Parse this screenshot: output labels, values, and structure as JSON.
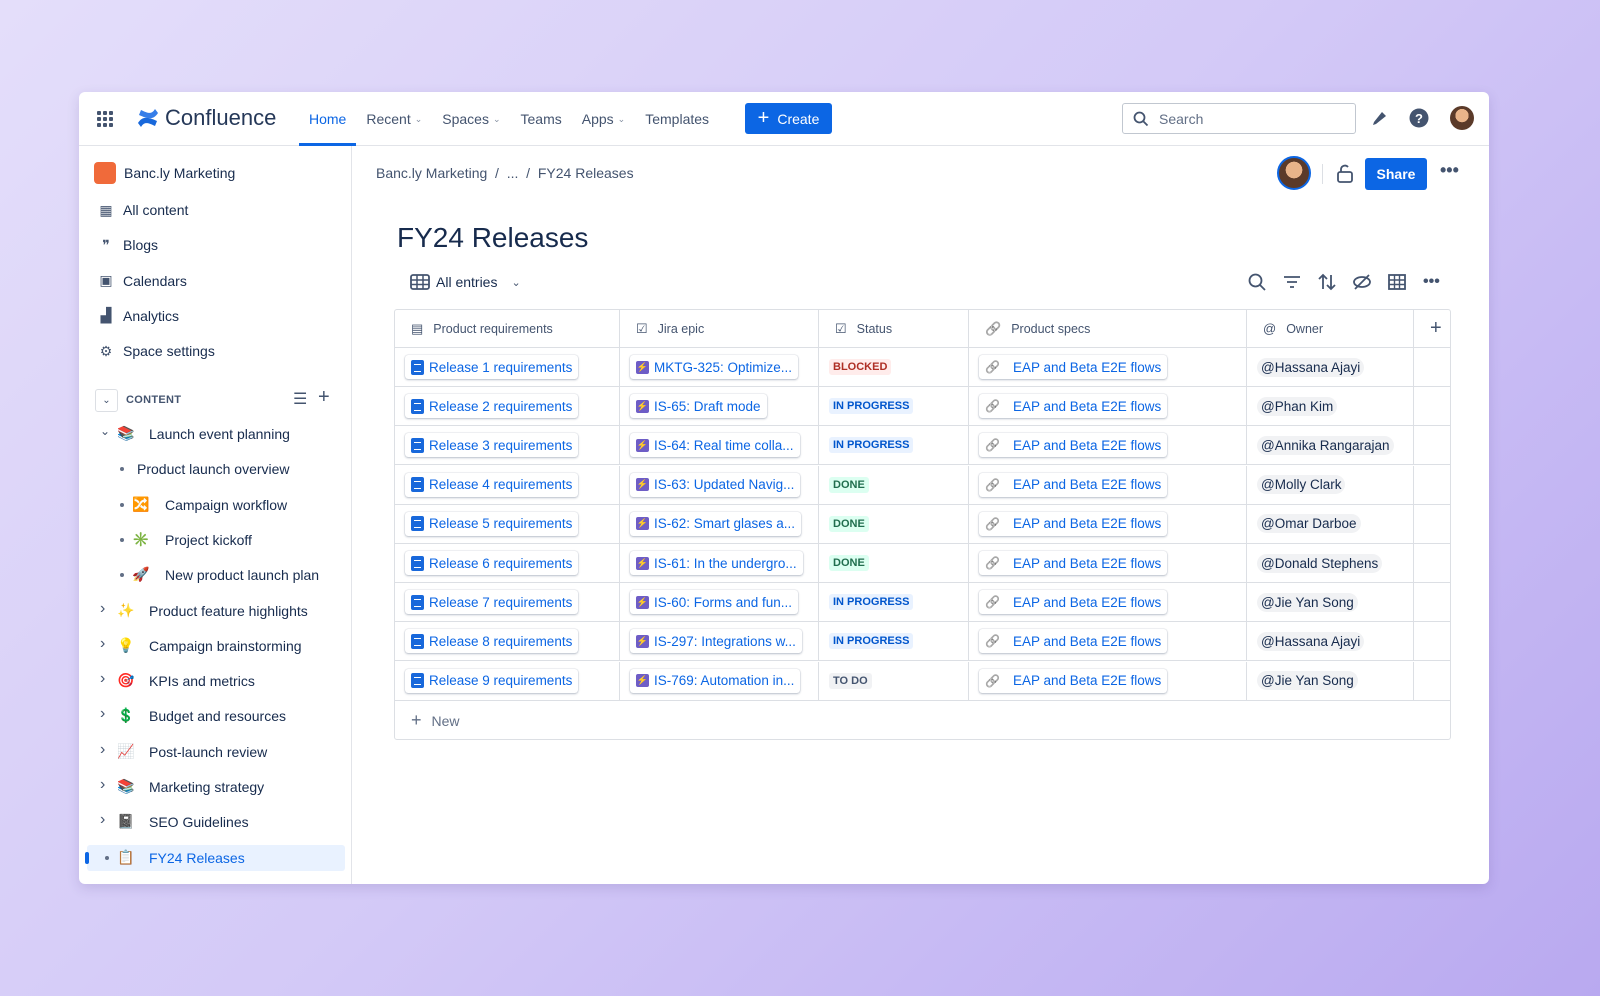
{
  "topbar": {
    "app_name": "Confluence",
    "nav": [
      {
        "label": "Home",
        "active": true,
        "dropdown": false
      },
      {
        "label": "Recent",
        "dropdown": true
      },
      {
        "label": "Spaces",
        "dropdown": true
      },
      {
        "label": "Teams",
        "dropdown": false
      },
      {
        "label": "Apps",
        "dropdown": true
      },
      {
        "label": "Templates",
        "dropdown": false
      }
    ],
    "create_label": "Create",
    "search_placeholder": "Search",
    "icons": [
      "app-switcher-icon",
      "notifications-icon",
      "help-icon",
      "avatar"
    ]
  },
  "sidebar": {
    "space_name": "Banc.ly Marketing",
    "items": [
      {
        "label": "All content",
        "icon": "grid-icon"
      },
      {
        "label": "Blogs",
        "icon": "quote-icon"
      },
      {
        "label": "Calendars",
        "icon": "calendar-icon"
      },
      {
        "label": "Analytics",
        "icon": "chart-icon"
      },
      {
        "label": "Space settings",
        "icon": "gear-icon"
      }
    ],
    "content_label": "CONTENT",
    "tree": [
      {
        "label": "Launch event planning",
        "emoji": "📚",
        "level": 0,
        "state": "expanded"
      },
      {
        "label": "Product launch overview",
        "emoji": "",
        "level": 1,
        "state": "leaf"
      },
      {
        "label": "Campaign workflow",
        "emoji": "🔀",
        "level": 1,
        "state": "leaf"
      },
      {
        "label": "Project kickoff",
        "emoji": "✳️",
        "level": 1,
        "state": "leaf"
      },
      {
        "label": "New product launch plan",
        "emoji": "🚀",
        "level": 1,
        "state": "leaf"
      },
      {
        "label": "Product feature highlights",
        "emoji": "✨",
        "level": 0,
        "state": "collapsed"
      },
      {
        "label": "Campaign brainstorming",
        "emoji": "💡",
        "level": 0,
        "state": "collapsed"
      },
      {
        "label": "KPIs and metrics",
        "emoji": "🎯",
        "level": 0,
        "state": "collapsed"
      },
      {
        "label": "Budget and resources",
        "emoji": "💲",
        "level": 0,
        "state": "collapsed"
      },
      {
        "label": "Post-launch review",
        "emoji": "📈",
        "level": 0,
        "state": "collapsed"
      },
      {
        "label": "Marketing strategy",
        "emoji": "📚",
        "level": 0,
        "state": "collapsed"
      },
      {
        "label": "SEO Guidelines",
        "emoji": "📓",
        "level": 0,
        "state": "collapsed"
      },
      {
        "label": "FY24 Releases",
        "emoji": "📋",
        "level": 0,
        "state": "selected"
      }
    ]
  },
  "main": {
    "breadcrumb": [
      "Banc.ly Marketing",
      "...",
      "FY24 Releases"
    ],
    "share_label": "Share",
    "title": "FY24 Releases",
    "view_label": "All entries",
    "columns": [
      "Product requirements",
      "Jira epic",
      "Status",
      "Product specs",
      "Owner"
    ],
    "rows": [
      {
        "req": "Release 1 requirements",
        "epic": "MKTG-325: Optimize...",
        "status": "BLOCKED",
        "spec": "EAP and Beta E2E flows",
        "owner": "Hassana Ajayi"
      },
      {
        "req": "Release 2 requirements",
        "epic": "IS-65: Draft mode",
        "status": "IN PROGRESS",
        "spec": "EAP and Beta E2E flows",
        "owner": "Phan Kim"
      },
      {
        "req": "Release 3 requirements",
        "epic": "IS-64: Real time colla...",
        "status": "IN PROGRESS",
        "spec": "EAP and Beta E2E flows",
        "owner": "Annika Rangarajan"
      },
      {
        "req": "Release 4 requirements",
        "epic": "IS-63: Updated Navig...",
        "status": "DONE",
        "spec": "EAP and Beta E2E flows",
        "owner": "Molly Clark"
      },
      {
        "req": "Release 5 requirements",
        "epic": "IS-62: Smart glases a...",
        "status": "DONE",
        "spec": "EAP and Beta E2E flows",
        "owner": "Omar Darboe"
      },
      {
        "req": "Release 6 requirements",
        "epic": "IS-61: In the undergro...",
        "status": "DONE",
        "spec": "EAP and Beta E2E flows",
        "owner": "Donald Stephens"
      },
      {
        "req": "Release 7 requirements",
        "epic": "IS-60: Forms and fun...",
        "status": "IN PROGRESS",
        "spec": "EAP and Beta E2E flows",
        "owner": "Jie Yan Song"
      },
      {
        "req": "Release 8 requirements",
        "epic": "IS-297: Integrations w...",
        "status": "IN PROGRESS",
        "spec": "EAP and Beta E2E flows",
        "owner": "Hassana Ajayi"
      },
      {
        "req": "Release 9 requirements",
        "epic": "IS-769: Automation in...",
        "status": "TO DO",
        "spec": "EAP and Beta E2E flows",
        "owner": "Jie Yan Song"
      }
    ],
    "new_label": "New"
  },
  "colors": {
    "accent": "#0c66e4",
    "BLOCKED": [
      "#ffeceb",
      "#ae2e24"
    ],
    "IN PROGRESS": [
      "#e9f2ff",
      "#0055cc"
    ],
    "DONE": [
      "#dcfff1",
      "#216e4e"
    ],
    "TO DO": [
      "#f1f2f4",
      "#44546f"
    ]
  }
}
